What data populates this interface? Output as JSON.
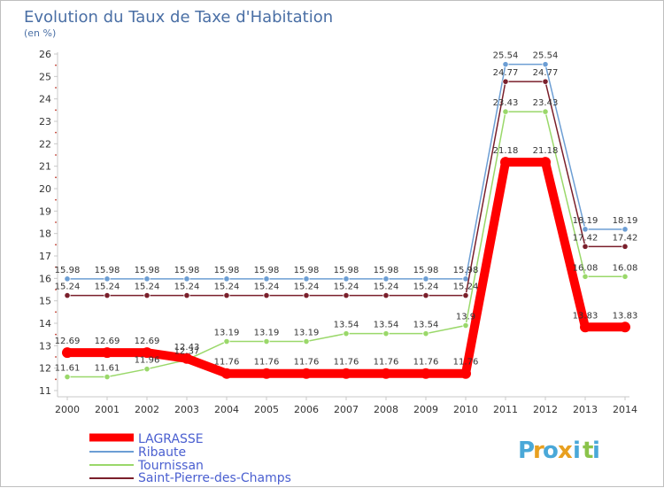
{
  "chart_data": {
    "type": "line",
    "title": "Evolution du Taux de Taxe d'Habitation",
    "ylabel": "(en %)",
    "xlabel": "",
    "ylim": [
      11,
      26
    ],
    "yticks": [
      11,
      12,
      13,
      14,
      15,
      16,
      17,
      18,
      19,
      20,
      21,
      22,
      23,
      24,
      25,
      26
    ],
    "categories": [
      "2000",
      "2001",
      "2002",
      "2003",
      "2004",
      "2005",
      "2006",
      "2007",
      "2008",
      "2009",
      "2010",
      "2011",
      "2012",
      "2013",
      "2014"
    ],
    "grid": false,
    "legend_position": "bottom-left",
    "series": [
      {
        "name": "Ribaute",
        "color": "#6c9ed4",
        "values": [
          15.98,
          15.98,
          15.98,
          15.98,
          15.98,
          15.98,
          15.98,
          15.98,
          15.98,
          15.98,
          15.98,
          25.54,
          25.54,
          18.19,
          18.19
        ],
        "labels": [
          "15.98",
          "15.98",
          "15.98",
          "15.98",
          "15.98",
          "15.98",
          "15.98",
          "15.98",
          "15.98",
          "15.98",
          "15.98",
          "25.54",
          "25.54",
          "18.19",
          "18.19"
        ]
      },
      {
        "name": "Saint-Pierre-des-Champs",
        "color": "#7a1f2b",
        "values": [
          15.24,
          15.24,
          15.24,
          15.24,
          15.24,
          15.24,
          15.24,
          15.24,
          15.24,
          15.24,
          15.24,
          24.77,
          24.77,
          17.42,
          17.42
        ],
        "labels": [
          "15.24",
          "15.24",
          "15.24",
          "15.24",
          "15.24",
          "15.24",
          "15.24",
          "15.24",
          "15.24",
          "15.24",
          "15.24",
          "24.77",
          "24.77",
          "17.42",
          "17.42"
        ]
      },
      {
        "name": "Tournissan",
        "color": "#9ad86a",
        "values": [
          11.61,
          11.61,
          11.96,
          12.37,
          13.19,
          13.19,
          13.19,
          13.54,
          13.54,
          13.54,
          13.9,
          23.43,
          23.43,
          16.08,
          16.08
        ],
        "labels": [
          "11.61",
          "11.61",
          "11.96",
          "12.37",
          "13.19",
          "13.19",
          "13.19",
          "13.54",
          "13.54",
          "13.54",
          "13.9",
          "23.43",
          "23.43",
          "16.08",
          "16.08"
        ]
      },
      {
        "name": "LAGRASSE",
        "color": "#ff0000",
        "values": [
          12.69,
          12.69,
          12.69,
          12.43,
          11.76,
          11.76,
          11.76,
          11.76,
          11.76,
          11.76,
          11.76,
          21.18,
          21.18,
          13.83,
          13.83
        ],
        "labels": [
          "12.69",
          "12.69",
          "12.69",
          "12.43",
          "11.76",
          "11.76",
          "11.76",
          "11.76",
          "11.76",
          "11.76",
          "11.76",
          "21.18",
          "21.18",
          "13.83",
          "13.83"
        ]
      }
    ],
    "legend": [
      "LAGRASSE",
      "Ribaute",
      "Tournissan",
      "Saint-Pierre-des-Champs"
    ]
  },
  "logo": {
    "letters": [
      "P",
      "r",
      "o",
      "x",
      "i",
      "t",
      "i"
    ],
    "colors": [
      "#4aa8d8",
      "#e8a020",
      "#4aa8d8",
      "#e8a020",
      "#4aa8d8",
      "#8bc34a",
      "#4aa8d8"
    ]
  }
}
